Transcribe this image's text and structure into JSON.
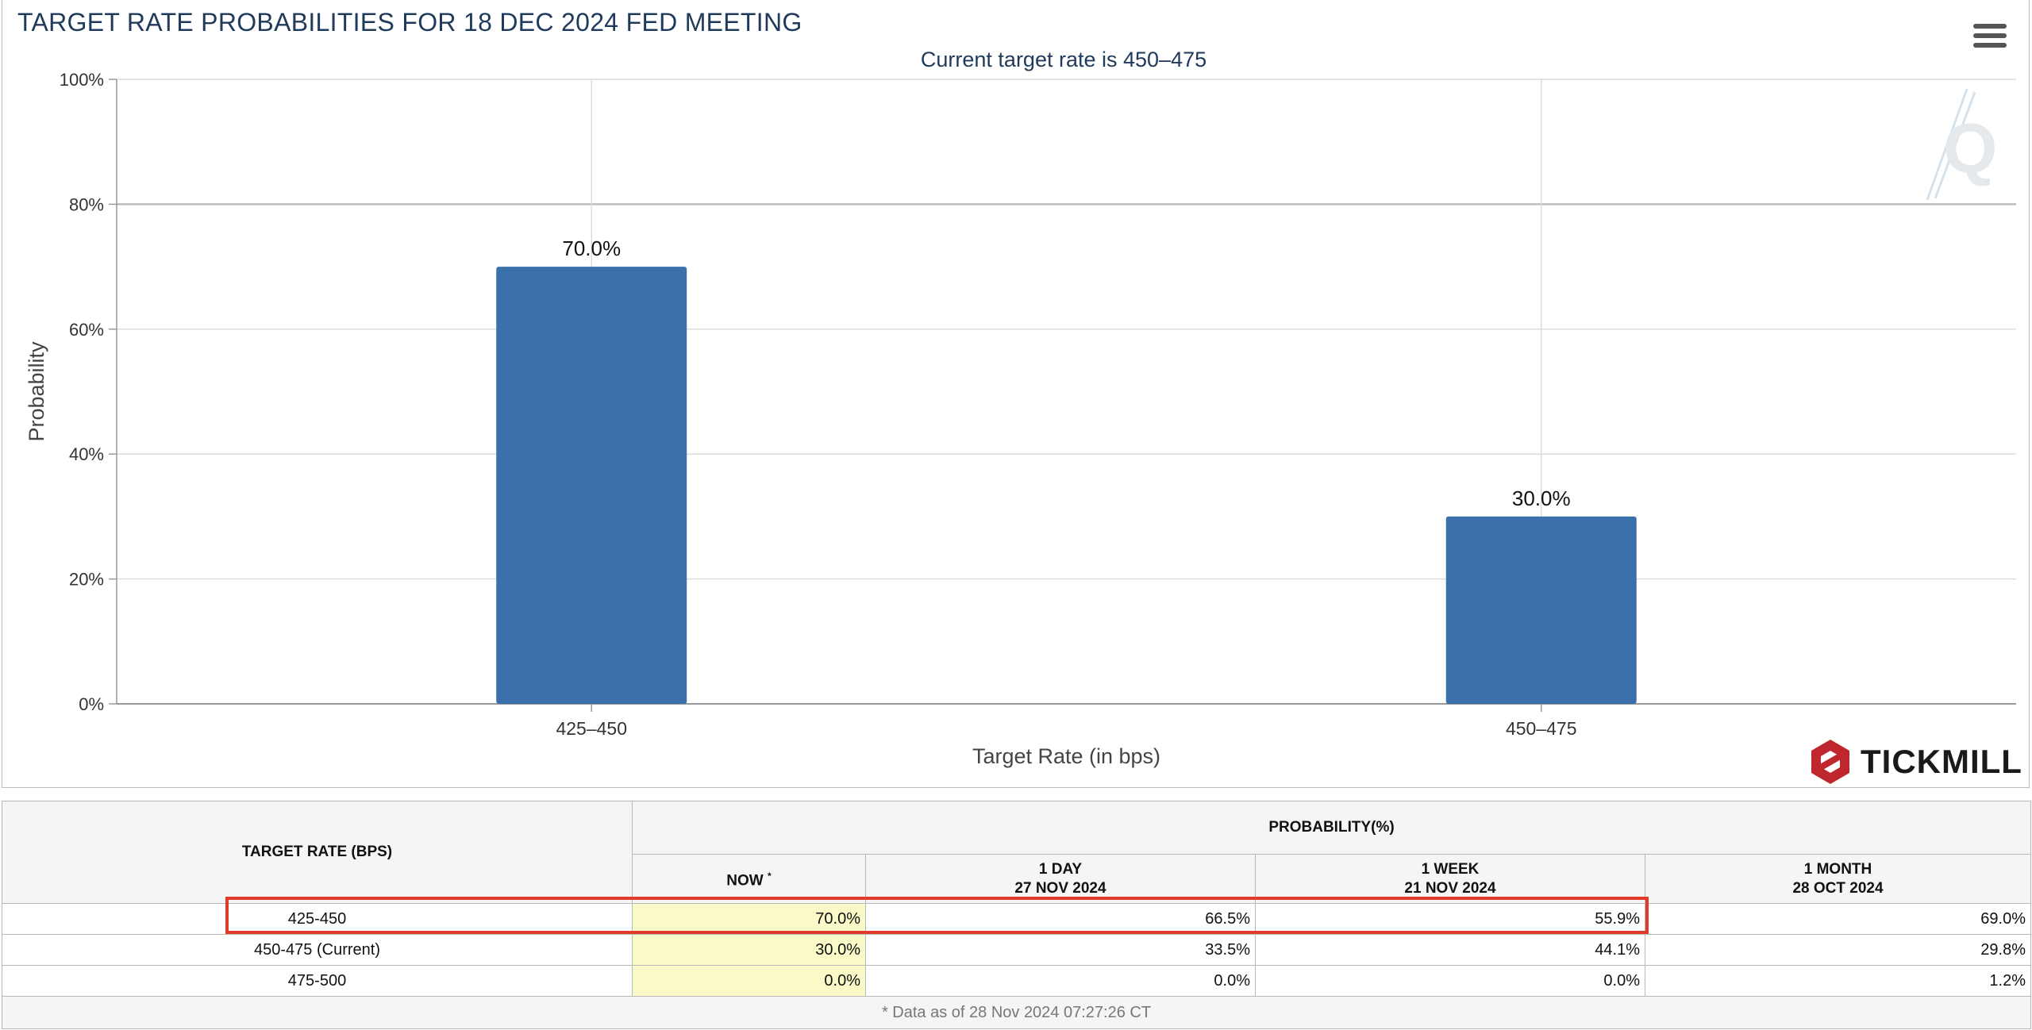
{
  "chart": {
    "title": "TARGET RATE PROBABILITIES FOR 18 DEC 2024 FED MEETING",
    "subtitle": "Current target rate is 450–475"
  },
  "chart_data": {
    "type": "bar",
    "title": "TARGET RATE PROBABILITIES FOR 18 DEC 2024 FED MEETING",
    "subtitle": "Current target rate is 450–475",
    "categories": [
      "425–450",
      "450–475"
    ],
    "values": [
      70.0,
      30.0
    ],
    "data_labels": [
      "70.0%",
      "30.0%"
    ],
    "xlabel": "Target Rate (in bps)",
    "ylabel": "Probability",
    "ylim": [
      0,
      100
    ],
    "y_ticks": [
      0,
      20,
      40,
      60,
      80,
      100
    ],
    "y_tick_labels": [
      "0%",
      "20%",
      "40%",
      "60%",
      "80%",
      "100%"
    ],
    "grid": true,
    "legend": "none",
    "bar_color": "#3a70ab"
  },
  "menu": {
    "icon": "hamburger-icon"
  },
  "branding": {
    "logo_text": "TICKMILL",
    "logo_color": "#c0262d",
    "watermark_icon": "q-watermark-icon"
  },
  "table": {
    "rate_header": "TARGET RATE (BPS)",
    "prob_header": "PROBABILITY(%)",
    "columns": [
      {
        "label": "NOW",
        "marker": "*",
        "date": ""
      },
      {
        "label": "1 DAY",
        "date": "27 NOV 2024"
      },
      {
        "label": "1 WEEK",
        "date": "21 NOV 2024"
      },
      {
        "label": "1 MONTH",
        "date": "28 OCT 2024"
      }
    ],
    "rows": [
      {
        "rate": "425-450",
        "values": [
          "70.0%",
          "66.5%",
          "55.9%",
          "69.0%"
        ]
      },
      {
        "rate": "450-475 (Current)",
        "values": [
          "30.0%",
          "33.5%",
          "44.1%",
          "29.8%"
        ]
      },
      {
        "rate": "475-500",
        "values": [
          "0.0%",
          "0.0%",
          "0.0%",
          "1.2%"
        ]
      }
    ],
    "footnote": "* Data as of 28 Nov 2024 07:27:26 CT",
    "highlight_color": "#e03a2a",
    "now_cell_color": "#fafac8"
  }
}
